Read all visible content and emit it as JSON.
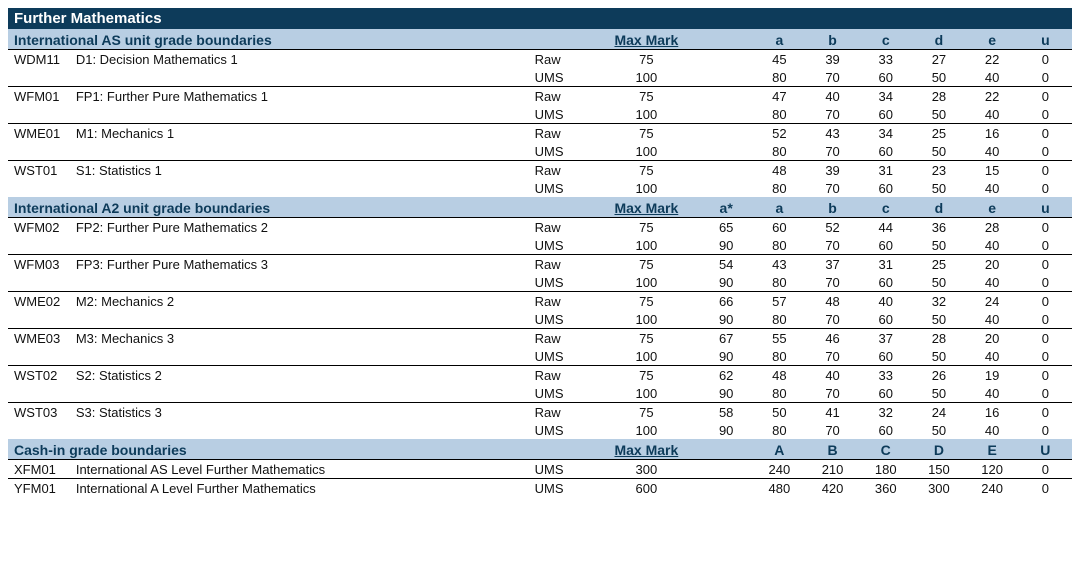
{
  "colors": {
    "title_bg": "#0d3b5a",
    "title_fg": "#ffffff",
    "header_bg": "#b8cee3",
    "header_fg": "#0d3b5a",
    "border": "#000000",
    "text": "#111111"
  },
  "title": "Further Mathematics",
  "sections": [
    {
      "title": "International AS unit grade boundaries",
      "max_label": "Max Mark",
      "show_astar": false,
      "grade_labels": [
        "a",
        "b",
        "c",
        "d",
        "e",
        "u"
      ],
      "units": [
        {
          "code": "WDM11",
          "name": "D1: Decision Mathematics 1",
          "rows": [
            {
              "type": "Raw",
              "max": "75",
              "grades": [
                "45",
                "39",
                "33",
                "27",
                "22",
                "0"
              ]
            },
            {
              "type": "UMS",
              "max": "100",
              "grades": [
                "80",
                "70",
                "60",
                "50",
                "40",
                "0"
              ]
            }
          ]
        },
        {
          "code": "WFM01",
          "name": "FP1: Further Pure Mathematics 1",
          "rows": [
            {
              "type": "Raw",
              "max": "75",
              "grades": [
                "47",
                "40",
                "34",
                "28",
                "22",
                "0"
              ]
            },
            {
              "type": "UMS",
              "max": "100",
              "grades": [
                "80",
                "70",
                "60",
                "50",
                "40",
                "0"
              ]
            }
          ]
        },
        {
          "code": "WME01",
          "name": "M1: Mechanics 1",
          "rows": [
            {
              "type": "Raw",
              "max": "75",
              "grades": [
                "52",
                "43",
                "34",
                "25",
                "16",
                "0"
              ]
            },
            {
              "type": "UMS",
              "max": "100",
              "grades": [
                "80",
                "70",
                "60",
                "50",
                "40",
                "0"
              ]
            }
          ]
        },
        {
          "code": "WST01",
          "name": "S1: Statistics 1",
          "rows": [
            {
              "type": "Raw",
              "max": "75",
              "grades": [
                "48",
                "39",
                "31",
                "23",
                "15",
                "0"
              ]
            },
            {
              "type": "UMS",
              "max": "100",
              "grades": [
                "80",
                "70",
                "60",
                "50",
                "40",
                "0"
              ]
            }
          ]
        }
      ]
    },
    {
      "title": "International A2 unit grade boundaries",
      "max_label": "Max Mark",
      "show_astar": true,
      "astar_label": "a*",
      "grade_labels": [
        "a",
        "b",
        "c",
        "d",
        "e",
        "u"
      ],
      "units": [
        {
          "code": "WFM02",
          "name": "FP2: Further Pure Mathematics 2",
          "rows": [
            {
              "type": "Raw",
              "max": "75",
              "astar": "65",
              "grades": [
                "60",
                "52",
                "44",
                "36",
                "28",
                "0"
              ]
            },
            {
              "type": "UMS",
              "max": "100",
              "astar": "90",
              "grades": [
                "80",
                "70",
                "60",
                "50",
                "40",
                "0"
              ]
            }
          ]
        },
        {
          "code": "WFM03",
          "name": "FP3: Further Pure Mathematics 3",
          "rows": [
            {
              "type": "Raw",
              "max": "75",
              "astar": "54",
              "grades": [
                "43",
                "37",
                "31",
                "25",
                "20",
                "0"
              ]
            },
            {
              "type": "UMS",
              "max": "100",
              "astar": "90",
              "grades": [
                "80",
                "70",
                "60",
                "50",
                "40",
                "0"
              ]
            }
          ]
        },
        {
          "code": "WME02",
          "name": "M2: Mechanics 2",
          "rows": [
            {
              "type": "Raw",
              "max": "75",
              "astar": "66",
              "grades": [
                "57",
                "48",
                "40",
                "32",
                "24",
                "0"
              ]
            },
            {
              "type": "UMS",
              "max": "100",
              "astar": "90",
              "grades": [
                "80",
                "70",
                "60",
                "50",
                "40",
                "0"
              ]
            }
          ]
        },
        {
          "code": "WME03",
          "name": "M3: Mechanics 3",
          "rows": [
            {
              "type": "Raw",
              "max": "75",
              "astar": "67",
              "grades": [
                "55",
                "46",
                "37",
                "28",
                "20",
                "0"
              ]
            },
            {
              "type": "UMS",
              "max": "100",
              "astar": "90",
              "grades": [
                "80",
                "70",
                "60",
                "50",
                "40",
                "0"
              ]
            }
          ]
        },
        {
          "code": "WST02",
          "name": "S2: Statistics 2",
          "rows": [
            {
              "type": "Raw",
              "max": "75",
              "astar": "62",
              "grades": [
                "48",
                "40",
                "33",
                "26",
                "19",
                "0"
              ]
            },
            {
              "type": "UMS",
              "max": "100",
              "astar": "90",
              "grades": [
                "80",
                "70",
                "60",
                "50",
                "40",
                "0"
              ]
            }
          ]
        },
        {
          "code": "WST03",
          "name": "S3: Statistics 3",
          "rows": [
            {
              "type": "Raw",
              "max": "75",
              "astar": "58",
              "grades": [
                "50",
                "41",
                "32",
                "24",
                "16",
                "0"
              ]
            },
            {
              "type": "UMS",
              "max": "100",
              "astar": "90",
              "grades": [
                "80",
                "70",
                "60",
                "50",
                "40",
                "0"
              ]
            }
          ]
        }
      ]
    },
    {
      "title": "Cash-in grade boundaries",
      "max_label": "Max Mark",
      "show_astar": false,
      "grade_labels": [
        "A",
        "B",
        "C",
        "D",
        "E",
        "U"
      ],
      "units": [
        {
          "code": "XFM01",
          "name": "International AS Level Further Mathematics",
          "rows": [
            {
              "type": "UMS",
              "max": "300",
              "grades": [
                "240",
                "210",
                "180",
                "150",
                "120",
                "0"
              ]
            }
          ]
        },
        {
          "code": "YFM01",
          "name": "International A Level Further Mathematics",
          "rows": [
            {
              "type": "UMS",
              "max": "600",
              "grades": [
                "480",
                "420",
                "360",
                "300",
                "240",
                "0"
              ]
            }
          ]
        }
      ]
    }
  ]
}
